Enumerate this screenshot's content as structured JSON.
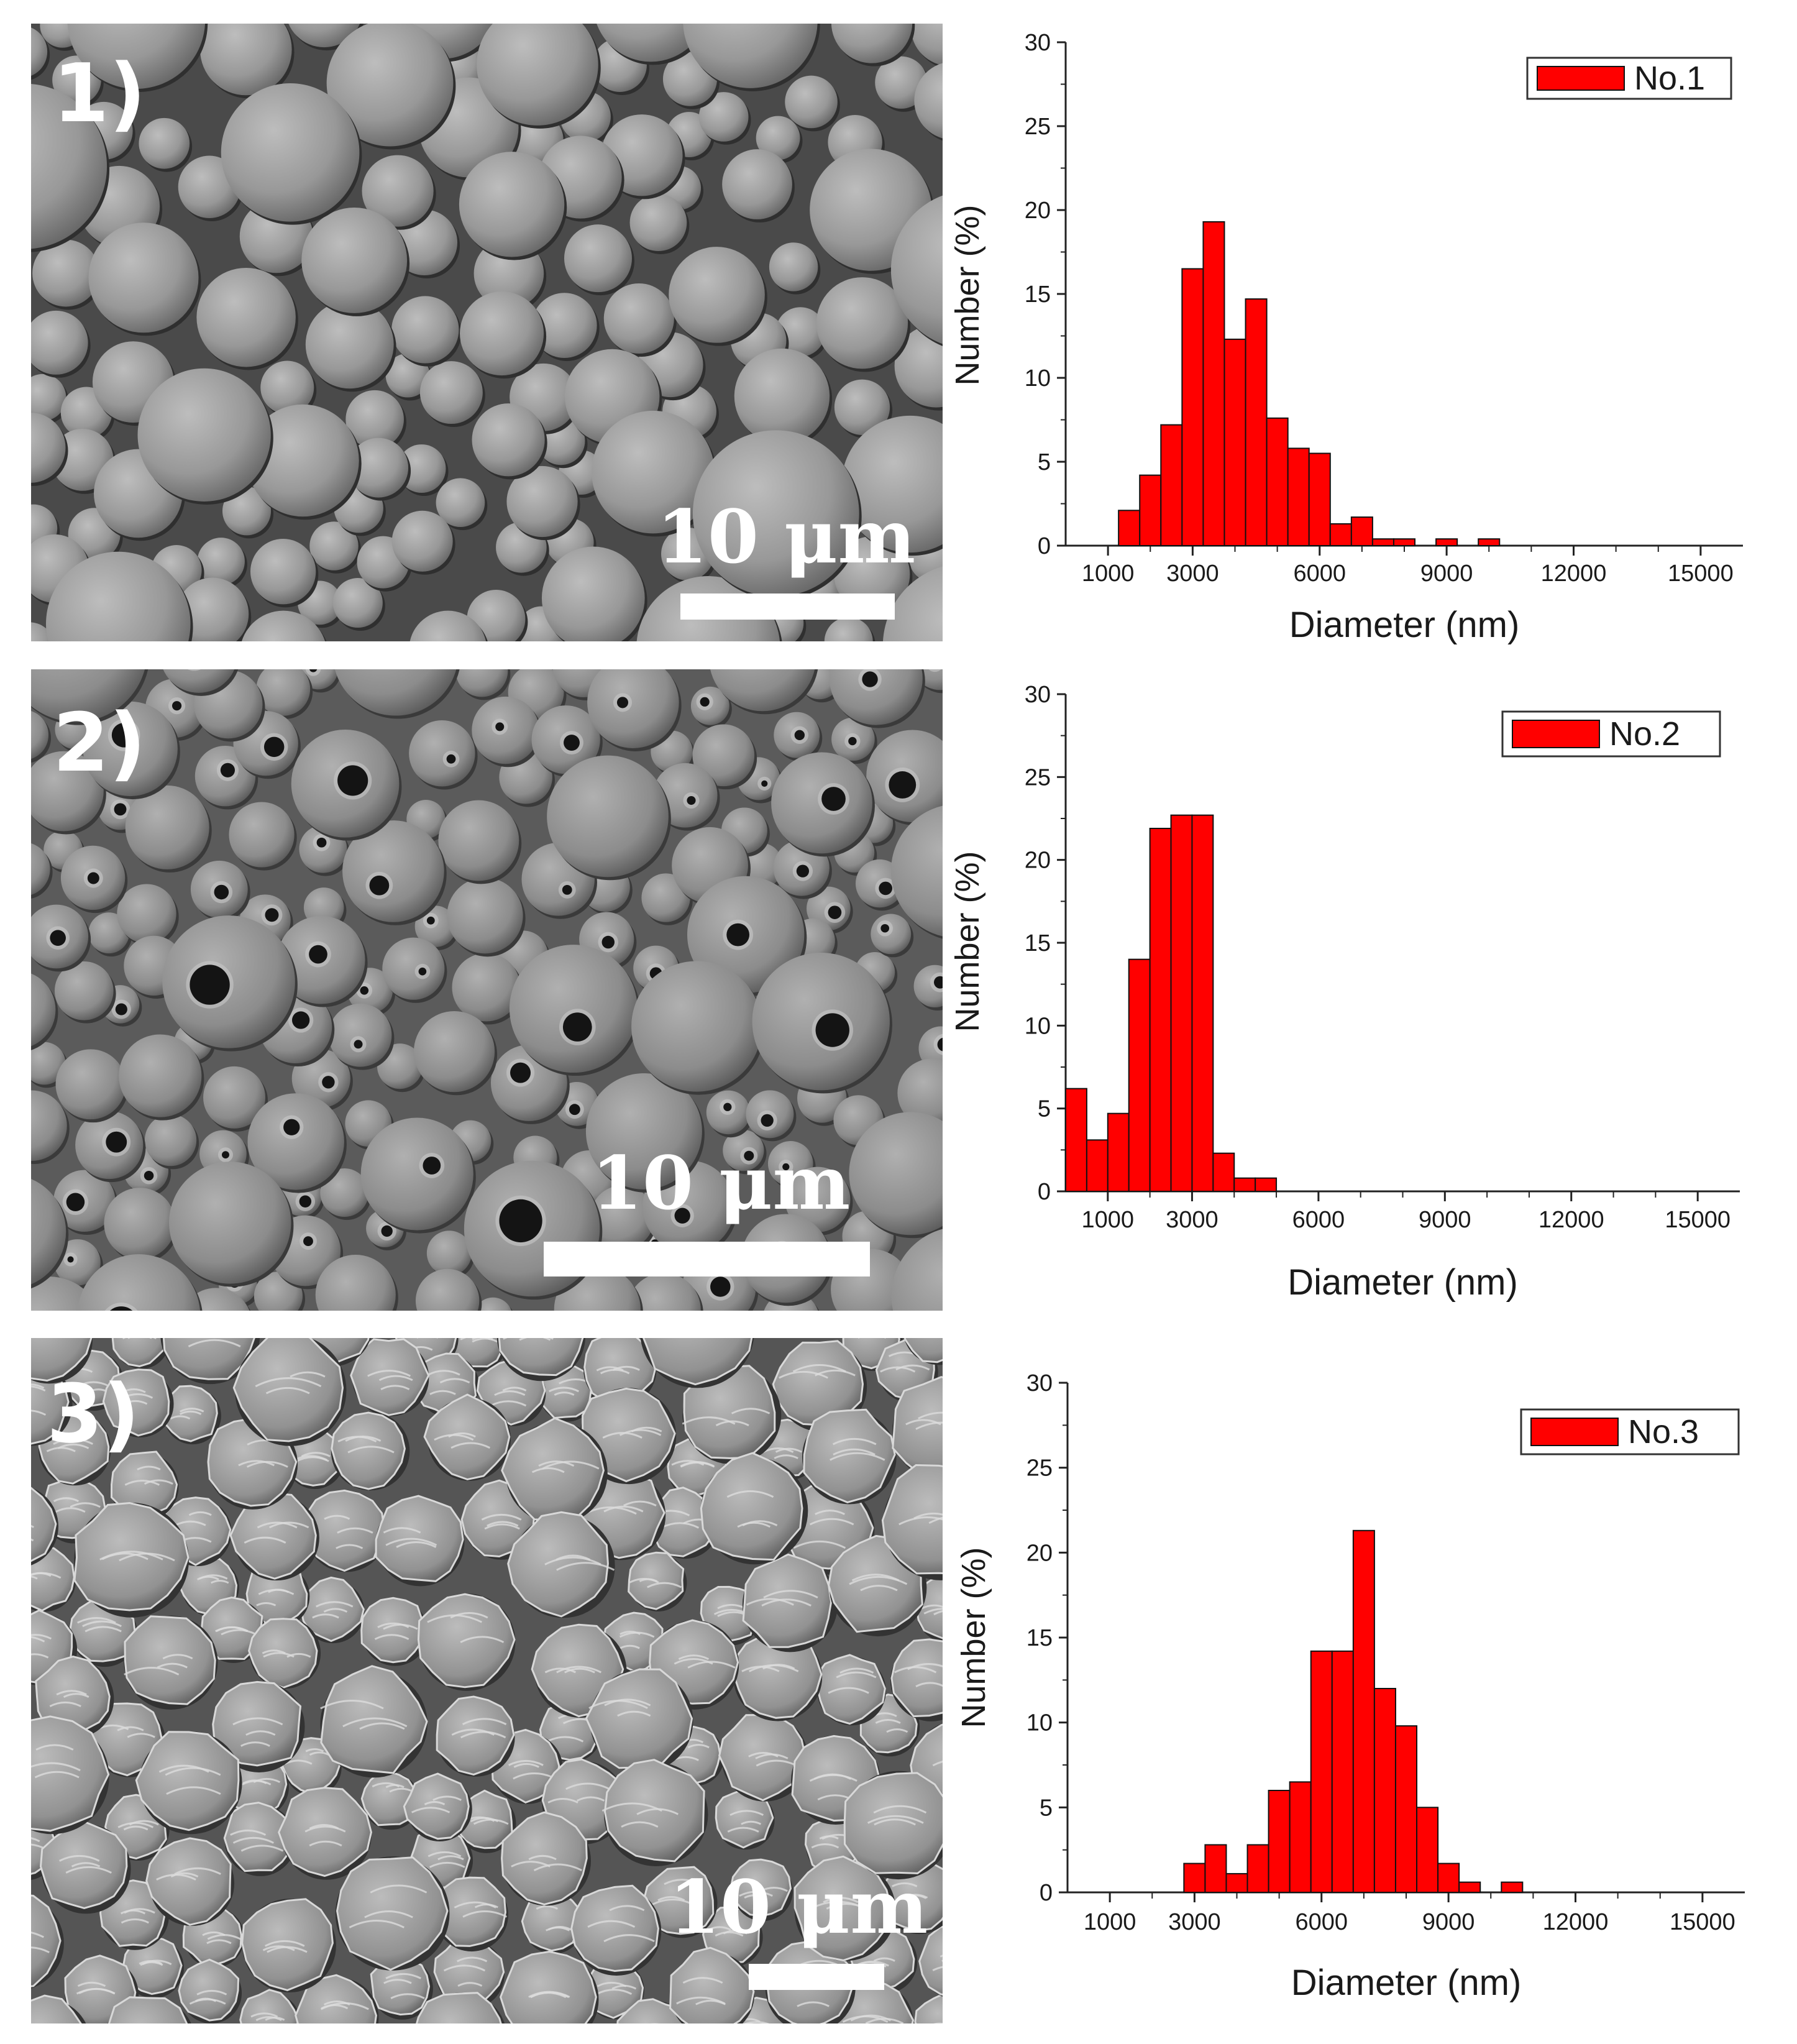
{
  "panels": [
    {
      "label": "1)",
      "scale_bar_text": "10 μm",
      "morphology": "smooth solid spheres"
    },
    {
      "label": "2)",
      "scale_bar_text": "10 μm",
      "morphology": "hollow spheres with single surface pores"
    },
    {
      "label": "3)",
      "scale_bar_text": "10 μm",
      "morphology": "wrinkled crumpled spheres"
    }
  ],
  "colors": {
    "bar": "#ff0000",
    "bar_edge": "#111111",
    "axis": "#222222",
    "sem_bg": "#555555"
  },
  "chart_data": [
    {
      "type": "bar",
      "legend": "No.1",
      "legend_position": "top-right",
      "xlabel": "Diameter (nm)",
      "ylabel": "Number (%)",
      "xlim": [
        0,
        16000
      ],
      "ylim": [
        0,
        30
      ],
      "xticks": [
        1000,
        3000,
        6000,
        9000,
        12000,
        15000
      ],
      "yticks": [
        0,
        5,
        10,
        15,
        20,
        25,
        30
      ],
      "bin_width": 500,
      "x": [
        1500,
        2000,
        2500,
        3000,
        3500,
        4000,
        4500,
        5000,
        5500,
        6000,
        6500,
        7000,
        7500,
        8000,
        9000,
        10000
      ],
      "values": [
        2.1,
        4.2,
        7.2,
        16.5,
        19.3,
        12.3,
        14.7,
        7.6,
        5.8,
        5.5,
        1.3,
        1.7,
        0.4,
        0.4,
        0.4,
        0.4
      ]
    },
    {
      "type": "bar",
      "legend": "No.2",
      "legend_position": "top-right",
      "xlabel": "Diameter (nm)",
      "ylabel": "Number (%)",
      "xlim": [
        0,
        16000
      ],
      "ylim": [
        0,
        30
      ],
      "xticks": [
        1000,
        3000,
        6000,
        9000,
        12000,
        15000
      ],
      "yticks": [
        0,
        5,
        10,
        15,
        20,
        25,
        30
      ],
      "bin_width": 500,
      "x": [
        250,
        750,
        1250,
        1750,
        2250,
        2750,
        3250,
        3750,
        4250,
        4750
      ],
      "values": [
        6.2,
        3.1,
        4.7,
        14.0,
        21.9,
        22.7,
        22.7,
        2.3,
        0.8,
        0.8
      ]
    },
    {
      "type": "bar",
      "legend": "No.3",
      "legend_position": "top-right",
      "xlabel": "Diameter (nm)",
      "ylabel": "Number (%)",
      "xlim": [
        0,
        16000
      ],
      "ylim": [
        0,
        30
      ],
      "xticks": [
        1000,
        3000,
        6000,
        9000,
        12000,
        15000
      ],
      "yticks": [
        0,
        5,
        10,
        15,
        20,
        25,
        30
      ],
      "bin_width": 500,
      "x": [
        3000,
        3500,
        4000,
        4500,
        5000,
        5500,
        6000,
        6500,
        7000,
        7500,
        8000,
        8500,
        9000,
        9500,
        10500
      ],
      "values": [
        1.7,
        2.8,
        1.1,
        2.8,
        6.0,
        6.5,
        14.2,
        14.2,
        21.3,
        12.0,
        9.8,
        5.0,
        1.7,
        0.6,
        0.6
      ]
    }
  ]
}
